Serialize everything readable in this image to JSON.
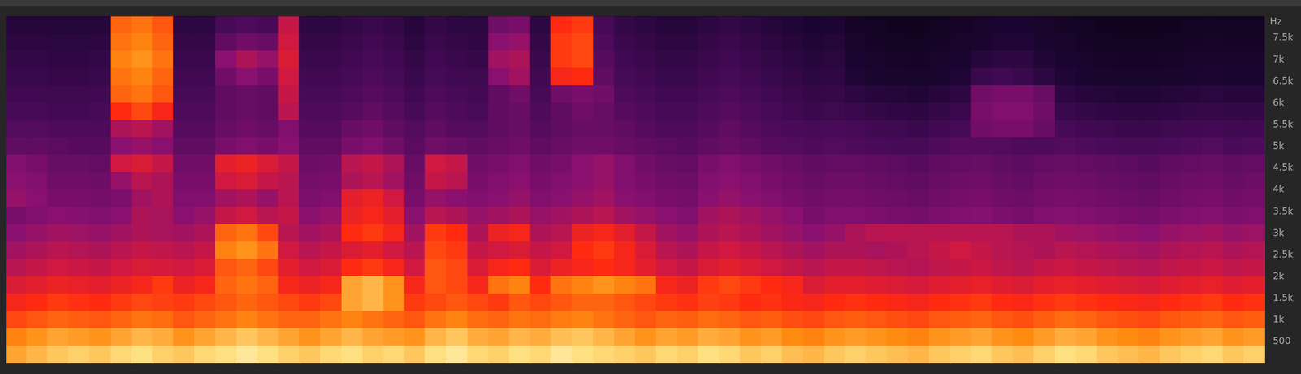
{
  "chart_data": {
    "type": "heatmap",
    "y_label": "Hz",
    "ylim": [
      0,
      8000
    ],
    "yticks": [
      500,
      {
        "value": 1000,
        "label": "1k"
      },
      {
        "value": 1500,
        "label": "1.5k"
      },
      {
        "value": 2000,
        "label": "2k"
      },
      {
        "value": 2500,
        "label": "2.5k"
      },
      {
        "value": 3000,
        "label": "3k"
      },
      {
        "value": 3500,
        "label": "3.5k"
      },
      {
        "value": 4000,
        "label": "4k"
      },
      {
        "value": 4500,
        "label": "4.5k"
      },
      {
        "value": 5000,
        "label": "5k"
      },
      {
        "value": 5500,
        "label": "5.5k"
      },
      {
        "value": 6000,
        "label": "6k"
      },
      {
        "value": 6500,
        "label": "6.5k"
      },
      {
        "value": 7000,
        "label": "7k"
      },
      {
        "value": 7500,
        "label": "7.5k"
      }
    ],
    "tick_labels": "y",
    "grid": false,
    "y_bins": [
      0,
      400,
      800,
      1200,
      1600,
      2000,
      2400,
      2800,
      3200,
      3600,
      4000,
      4400,
      4800,
      5200,
      5600,
      6000,
      6400,
      6800,
      7200,
      7600,
      8000
    ],
    "color_range": [
      0,
      100
    ],
    "values": [
      [
        88,
        90,
        92,
        93,
        92,
        94,
        95,
        93,
        92,
        94,
        95,
        96,
        95,
        93,
        92,
        94,
        95,
        93,
        94,
        92,
        95,
        96,
        94,
        93,
        95,
        94,
        96,
        95,
        94,
        93,
        92,
        94,
        93,
        95,
        94,
        92,
        93,
        91,
        90,
        92,
        93,
        92,
        91,
        90,
        92,
        93,
        94,
        92,
        91,
        93,
        95,
        94,
        92,
        91,
        90,
        92,
        93,
        94,
        92,
        93
      ],
      [
        84,
        86,
        88,
        87,
        86,
        88,
        90,
        89,
        86,
        88,
        90,
        92,
        90,
        88,
        86,
        88,
        90,
        88,
        87,
        86,
        90,
        92,
        89,
        88,
        90,
        89,
        91,
        92,
        90,
        88,
        86,
        88,
        87,
        89,
        88,
        86,
        87,
        85,
        84,
        86,
        87,
        86,
        85,
        84,
        86,
        87,
        88,
        86,
        85,
        87,
        89,
        88,
        86,
        85,
        84,
        86,
        87,
        88,
        86,
        87
      ],
      [
        76,
        78,
        80,
        79,
        78,
        80,
        82,
        81,
        78,
        80,
        82,
        84,
        82,
        80,
        80,
        82,
        84,
        82,
        80,
        78,
        82,
        84,
        81,
        80,
        82,
        81,
        83,
        84,
        82,
        80,
        78,
        80,
        79,
        81,
        80,
        78,
        79,
        77,
        76,
        78,
        79,
        78,
        77,
        76,
        78,
        79,
        80,
        78,
        77,
        79,
        81,
        80,
        78,
        77,
        76,
        78,
        79,
        80,
        78,
        79
      ],
      [
        70,
        72,
        74,
        73,
        72,
        74,
        76,
        75,
        74,
        76,
        78,
        80,
        78,
        76,
        74,
        76,
        88,
        90,
        86,
        74,
        76,
        78,
        76,
        74,
        78,
        76,
        78,
        80,
        80,
        78,
        76,
        74,
        73,
        75,
        74,
        72,
        73,
        71,
        70,
        72,
        73,
        72,
        71,
        70,
        72,
        73,
        74,
        72,
        71,
        73,
        74,
        73,
        72,
        71,
        70,
        72,
        73,
        74,
        72,
        73
      ],
      [
        64,
        66,
        68,
        67,
        66,
        68,
        70,
        74,
        68,
        70,
        80,
        82,
        80,
        70,
        68,
        70,
        88,
        90,
        86,
        70,
        78,
        76,
        70,
        82,
        84,
        72,
        82,
        84,
        86,
        84,
        82,
        70,
        68,
        74,
        76,
        74,
        72,
        70,
        64,
        66,
        66,
        65,
        64,
        63,
        65,
        66,
        67,
        65,
        64,
        66,
        67,
        66,
        65,
        64,
        63,
        65,
        66,
        67,
        65,
        66
      ],
      [
        58,
        60,
        62,
        61,
        60,
        62,
        64,
        63,
        62,
        64,
        78,
        80,
        76,
        66,
        62,
        64,
        72,
        74,
        70,
        62,
        78,
        76,
        64,
        70,
        72,
        64,
        68,
        70,
        72,
        70,
        66,
        62,
        60,
        64,
        66,
        64,
        62,
        60,
        58,
        60,
        60,
        59,
        58,
        57,
        59,
        60,
        61,
        59,
        58,
        60,
        61,
        60,
        59,
        58,
        57,
        59,
        60,
        61,
        59,
        60
      ],
      [
        54,
        56,
        58,
        57,
        56,
        58,
        60,
        59,
        58,
        60,
        84,
        86,
        82,
        62,
        58,
        60,
        64,
        66,
        62,
        58,
        76,
        74,
        60,
        62,
        64,
        60,
        62,
        72,
        74,
        70,
        64,
        58,
        56,
        60,
        62,
        60,
        58,
        56,
        54,
        56,
        56,
        55,
        56,
        58,
        60,
        62,
        60,
        58,
        57,
        56,
        58,
        57,
        56,
        55,
        54,
        56,
        57,
        58,
        56,
        57
      ],
      [
        50,
        52,
        54,
        53,
        52,
        54,
        56,
        55,
        54,
        56,
        80,
        82,
        76,
        58,
        54,
        56,
        72,
        74,
        70,
        54,
        74,
        72,
        56,
        68,
        70,
        56,
        58,
        68,
        70,
        66,
        60,
        54,
        52,
        56,
        58,
        56,
        54,
        52,
        50,
        52,
        56,
        58,
        58,
        58,
        58,
        58,
        58,
        58,
        56,
        56,
        54,
        53,
        52,
        51,
        50,
        52,
        53,
        54,
        52,
        53
      ],
      [
        46,
        48,
        50,
        49,
        48,
        50,
        56,
        55,
        50,
        52,
        60,
        62,
        58,
        60,
        50,
        52,
        68,
        70,
        66,
        50,
        58,
        56,
        52,
        54,
        56,
        52,
        54,
        56,
        58,
        54,
        52,
        50,
        48,
        54,
        56,
        54,
        52,
        50,
        46,
        48,
        48,
        47,
        46,
        45,
        47,
        48,
        49,
        47,
        46,
        48,
        49,
        48,
        47,
        46,
        45,
        47,
        48,
        49,
        47,
        48
      ],
      [
        52,
        50,
        46,
        46,
        45,
        47,
        54,
        56,
        48,
        48,
        54,
        56,
        52,
        58,
        47,
        48,
        66,
        68,
        62,
        46,
        52,
        50,
        48,
        50,
        52,
        48,
        50,
        52,
        54,
        50,
        48,
        46,
        45,
        50,
        52,
        50,
        48,
        46,
        44,
        45,
        45,
        44,
        43,
        42,
        44,
        45,
        46,
        44,
        43,
        45,
        46,
        45,
        44,
        43,
        42,
        44,
        45,
        46,
        44,
        45
      ],
      [
        50,
        48,
        44,
        44,
        43,
        52,
        58,
        56,
        46,
        46,
        62,
        64,
        60,
        58,
        45,
        46,
        56,
        58,
        54,
        44,
        60,
        58,
        46,
        48,
        50,
        46,
        48,
        50,
        52,
        48,
        46,
        44,
        43,
        48,
        50,
        48,
        46,
        44,
        42,
        43,
        43,
        42,
        41,
        40,
        42,
        43,
        44,
        42,
        41,
        43,
        44,
        43,
        42,
        41,
        40,
        42,
        43,
        44,
        42,
        43
      ],
      [
        48,
        46,
        42,
        42,
        41,
        62,
        64,
        60,
        44,
        44,
        66,
        68,
        64,
        60,
        43,
        44,
        58,
        60,
        56,
        42,
        62,
        60,
        44,
        46,
        48,
        44,
        46,
        50,
        52,
        48,
        44,
        42,
        41,
        46,
        48,
        46,
        44,
        42,
        40,
        41,
        41,
        40,
        39,
        38,
        40,
        41,
        42,
        40,
        39,
        41,
        42,
        41,
        40,
        39,
        38,
        40,
        41,
        42,
        40,
        41
      ],
      [
        40,
        40,
        39,
        38,
        38,
        50,
        52,
        50,
        40,
        40,
        46,
        48,
        46,
        50,
        40,
        40,
        46,
        48,
        44,
        39,
        44,
        42,
        40,
        42,
        44,
        40,
        42,
        44,
        44,
        42,
        40,
        39,
        38,
        40,
        42,
        40,
        38,
        37,
        36,
        37,
        36,
        35,
        34,
        34,
        36,
        38,
        38,
        37,
        36,
        36,
        37,
        36,
        35,
        34,
        34,
        35,
        36,
        37,
        35,
        36
      ],
      [
        37,
        37,
        36,
        36,
        36,
        56,
        58,
        54,
        38,
        38,
        42,
        44,
        42,
        48,
        38,
        38,
        42,
        44,
        40,
        37,
        40,
        38,
        37,
        40,
        42,
        38,
        40,
        42,
        42,
        40,
        38,
        36,
        36,
        38,
        40,
        38,
        36,
        35,
        34,
        35,
        34,
        32,
        31,
        30,
        32,
        34,
        44,
        46,
        46,
        42,
        34,
        32,
        31,
        30,
        30,
        31,
        32,
        33,
        32,
        32
      ],
      [
        34,
        34,
        33,
        33,
        34,
        72,
        76,
        70,
        36,
        36,
        40,
        42,
        40,
        58,
        36,
        36,
        38,
        40,
        38,
        34,
        38,
        36,
        35,
        40,
        42,
        36,
        40,
        44,
        42,
        38,
        36,
        34,
        34,
        36,
        38,
        36,
        34,
        32,
        30,
        31,
        30,
        28,
        27,
        26,
        28,
        30,
        46,
        48,
        48,
        44,
        30,
        28,
        27,
        26,
        26,
        27,
        28,
        29,
        28,
        28
      ],
      [
        32,
        32,
        31,
        31,
        32,
        80,
        82,
        78,
        34,
        34,
        40,
        42,
        40,
        60,
        34,
        34,
        36,
        38,
        36,
        32,
        36,
        34,
        33,
        40,
        44,
        34,
        44,
        46,
        44,
        36,
        34,
        32,
        32,
        34,
        36,
        34,
        32,
        30,
        28,
        29,
        26,
        24,
        23,
        22,
        24,
        26,
        44,
        46,
        46,
        42,
        26,
        24,
        23,
        22,
        22,
        23,
        24,
        25,
        24,
        24
      ],
      [
        30,
        30,
        29,
        29,
        30,
        82,
        84,
        80,
        32,
        32,
        44,
        50,
        46,
        62,
        32,
        32,
        34,
        36,
        34,
        30,
        34,
        32,
        31,
        50,
        54,
        32,
        70,
        72,
        40,
        34,
        32,
        30,
        30,
        32,
        34,
        32,
        30,
        28,
        26,
        27,
        22,
        20,
        19,
        18,
        20,
        22,
        30,
        32,
        30,
        26,
        22,
        20,
        19,
        18,
        18,
        19,
        20,
        21,
        20,
        20
      ],
      [
        28,
        28,
        27,
        27,
        28,
        84,
        86,
        82,
        30,
        30,
        50,
        56,
        52,
        64,
        30,
        30,
        32,
        34,
        32,
        28,
        32,
        30,
        29,
        54,
        56,
        30,
        74,
        76,
        38,
        32,
        30,
        28,
        28,
        30,
        32,
        30,
        28,
        26,
        24,
        25,
        20,
        18,
        17,
        16,
        18,
        20,
        24,
        26,
        26,
        22,
        20,
        18,
        17,
        16,
        16,
        17,
        18,
        19,
        18,
        18
      ],
      [
        26,
        26,
        25,
        25,
        26,
        82,
        84,
        80,
        28,
        28,
        40,
        44,
        42,
        62,
        28,
        28,
        30,
        32,
        30,
        26,
        30,
        28,
        27,
        50,
        52,
        28,
        74,
        76,
        36,
        30,
        28,
        26,
        26,
        28,
        30,
        28,
        26,
        24,
        22,
        23,
        18,
        16,
        15,
        14,
        16,
        18,
        20,
        22,
        22,
        20,
        18,
        16,
        15,
        14,
        14,
        15,
        16,
        17,
        16,
        16
      ],
      [
        24,
        24,
        23,
        23,
        24,
        80,
        82,
        78,
        26,
        26,
        34,
        36,
        34,
        60,
        26,
        26,
        28,
        30,
        28,
        24,
        28,
        26,
        25,
        44,
        46,
        26,
        72,
        74,
        34,
        28,
        26,
        24,
        24,
        26,
        28,
        26,
        24,
        22,
        20,
        21,
        16,
        14,
        13,
        12,
        14,
        16,
        18,
        20,
        20,
        18,
        16,
        14,
        13,
        12,
        12,
        13,
        14,
        15,
        14,
        14
      ]
    ]
  }
}
